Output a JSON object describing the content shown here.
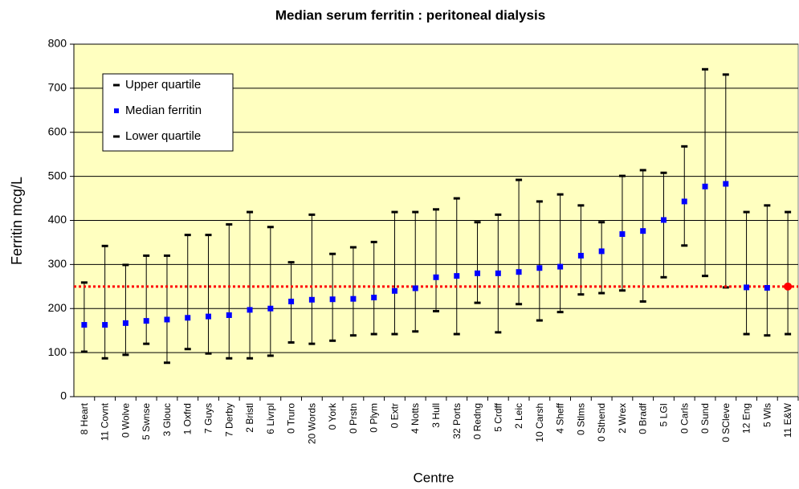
{
  "chart_data": {
    "type": "range",
    "title": "Median serum ferritin : peritoneal dialysis",
    "x_label": "Centre",
    "y_label": "Ferritin mcg/L",
    "categories": [
      "8 Heart",
      "11 Covnt",
      "0 Wolve",
      "5 Swnse",
      "3 Glouc",
      "1 Oxfrd",
      "7 Guys",
      "7 Derby",
      "2 Bristl",
      "6 Livrpl",
      "0 Truro",
      "20 Words",
      "0 York",
      "0 Prstn",
      "0 Plym",
      "0 Extr",
      "4 Notts",
      "3 Hull",
      "32 Ports",
      "0 Redng",
      "5 Crdff",
      "2 Leic",
      "10 Carsh",
      "4 Sheff",
      "0 Stlms",
      "0 Sthend",
      "2 Wrex",
      "0 Bradf",
      "5 LGI",
      "0 Carls",
      "0 Sund",
      "0 SCleve",
      "12 Eng",
      "5 Wls",
      "11 E&W"
    ],
    "series": [
      {
        "name": "Upper quartile",
        "color": "#000000",
        "values": [
          259,
          342,
          299,
          320,
          320,
          367,
          367,
          391,
          419,
          385,
          305,
          413,
          324,
          339,
          351,
          419,
          419,
          425,
          450,
          396,
          413,
          492,
          443,
          459,
          434,
          396,
          501,
          514,
          508,
          568,
          743,
          731,
          419,
          434,
          419
        ]
      },
      {
        "name": "Median ferritin",
        "color": "#0000ff",
        "values": [
          163,
          163,
          167,
          172,
          175,
          179,
          182,
          185,
          197,
          200,
          216,
          220,
          221,
          222,
          225,
          240,
          246,
          271,
          274,
          280,
          280,
          283,
          292,
          295,
          320,
          330,
          369,
          376,
          401,
          443,
          477,
          483,
          248,
          247,
          250
        ]
      },
      {
        "name": "Lower quartile",
        "color": "#000000",
        "values": [
          102,
          87,
          95,
          120,
          77,
          108,
          98,
          87,
          87,
          93,
          123,
          120,
          127,
          139,
          142,
          142,
          148,
          194,
          142,
          213,
          146,
          210,
          173,
          192,
          232,
          235,
          241,
          216,
          271,
          343,
          274,
          248,
          142,
          139,
          142
        ]
      }
    ],
    "reference_line": {
      "value": 250,
      "color": "#ff0000"
    },
    "ylim": [
      0,
      800
    ],
    "yticks": [
      0,
      100,
      200,
      300,
      400,
      500,
      600,
      700,
      800
    ],
    "grid": true,
    "plot_background": "#ffffc0"
  }
}
